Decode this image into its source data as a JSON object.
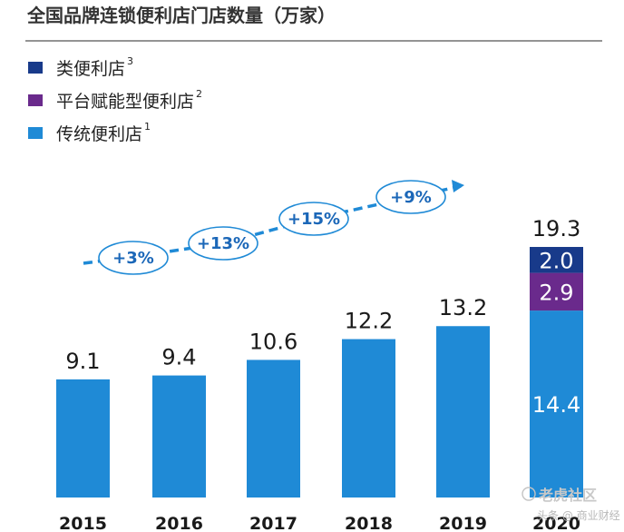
{
  "chart_data": {
    "type": "bar",
    "title": "全国品牌连锁便利店门店数量（万家）",
    "categories": [
      "2015",
      "2016",
      "2017",
      "2018",
      "2019",
      "2020"
    ],
    "totals": [
      "9.1",
      "9.4",
      "10.6",
      "12.2",
      "13.2",
      "19.3"
    ],
    "series": [
      {
        "name": "传统便利店",
        "sup": "1",
        "color": "#1f8ad6",
        "values": [
          9.1,
          9.4,
          10.6,
          12.2,
          13.2,
          14.4
        ],
        "labels": [
          "",
          "",
          "",
          "",
          "",
          "14.4"
        ]
      },
      {
        "name": "平台赋能型便利店",
        "sup": "2",
        "color": "#6a2a8c",
        "values": [
          0,
          0,
          0,
          0,
          0,
          2.9
        ],
        "labels": [
          "",
          "",
          "",
          "",
          "",
          "2.9"
        ]
      },
      {
        "name": "类便利店",
        "sup": "3",
        "color": "#183a8a",
        "values": [
          0,
          0,
          0,
          0,
          0,
          2.0
        ],
        "labels": [
          "",
          "",
          "",
          "",
          "",
          "2.0"
        ]
      }
    ],
    "legend_order": [
      2,
      1,
      0
    ],
    "growth": [
      "+3%",
      "+13%",
      "+15%",
      "+9%"
    ],
    "ylim": [
      0,
      20
    ],
    "legend": "top-left"
  },
  "watermark": {
    "small": "头条 @ 商业财经",
    "brand": "老虎社区"
  }
}
